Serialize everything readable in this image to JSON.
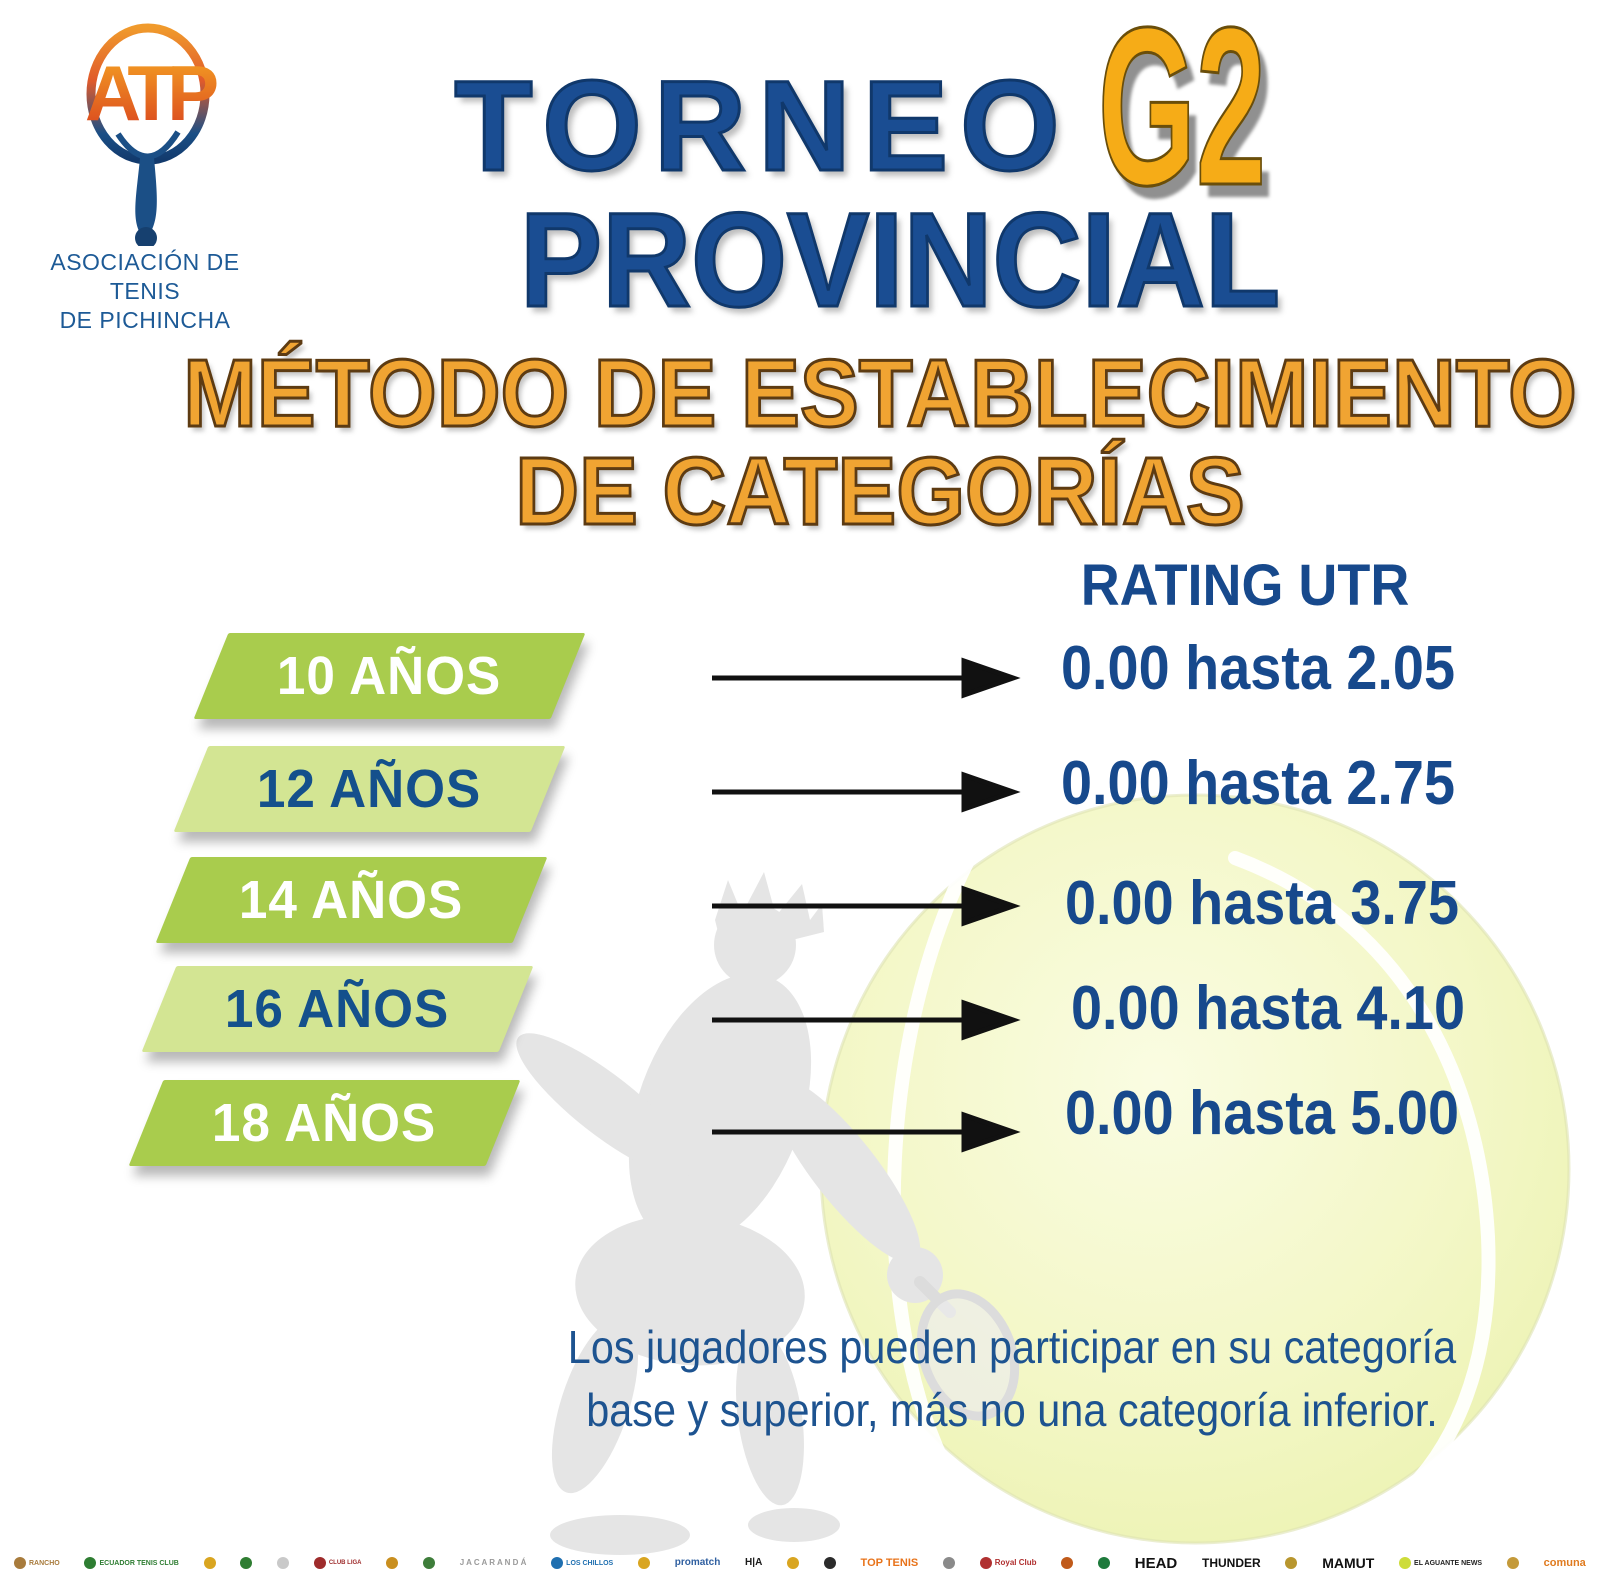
{
  "brand": {
    "org_line1": "ASOCIACIÓN DE TENIS",
    "org_line2": "DE PICHINCHA",
    "logo_letters": "ATP"
  },
  "title": {
    "line1": "TORNEO",
    "badge": "G2",
    "line2": "PROVINCIAL"
  },
  "subtitle": {
    "line1": "MÉTODO DE ESTABLECIMIENTO",
    "line2": "DE CATEGORÍAS"
  },
  "table": {
    "header": "RATING UTR",
    "rows": [
      {
        "category": "10 AÑOS",
        "rating": "0.00 hasta 2.05",
        "style": "dark"
      },
      {
        "category": "12 AÑOS",
        "rating": "0.00 hasta 2.75",
        "style": "light"
      },
      {
        "category": "14 AÑOS",
        "rating": "0.00 hasta 3.75",
        "style": "dark"
      },
      {
        "category": "16 AÑOS",
        "rating": "0.00 hasta 4.10",
        "style": "light"
      },
      {
        "category": "18 AÑOS",
        "rating": "0.00 hasta 5.00",
        "style": "dark"
      }
    ]
  },
  "note": {
    "line1": "Los jugadores pueden participar en su categoría",
    "line2": "base y superior, más no una categoría inferior."
  },
  "colors": {
    "title_blue": "#1a4d92",
    "badge_yellow": "#f6ac17",
    "subtitle_orange": "#f0a432",
    "banner_green_dark": "#a9cc4d",
    "banner_green_light": "#d3e593",
    "text_blue": "#17498c",
    "ball_yellow": "#f3f7c6",
    "silhouette_gray": "#e5e5e5"
  },
  "footer": {
    "sponsors": [
      {
        "t": "icon",
        "label": "RANCHO",
        "color": "#a87b3c",
        "size": 7
      },
      {
        "t": "icon",
        "label": "ECUADOR TENIS CLUB",
        "color": "#2e7d32",
        "size": 7
      },
      {
        "t": "icon",
        "label": "",
        "color": "#d9a520"
      },
      {
        "t": "icon",
        "label": "",
        "color": "#2f7d32"
      },
      {
        "t": "icon",
        "label": "",
        "color": "#c9c9c9"
      },
      {
        "t": "icon",
        "label": "CLUB LIGA",
        "color": "#9e2b2b",
        "size": 6
      },
      {
        "t": "icon",
        "label": "",
        "color": "#c98f1f"
      },
      {
        "t": "icon",
        "label": "",
        "color": "#3e7d3a"
      },
      {
        "t": "text",
        "label": "J A C A R A N D Á",
        "color": "#9a9a9a",
        "size": 8
      },
      {
        "t": "icon",
        "label": "LOS CHILLOS",
        "color": "#1f6fb0",
        "size": 7
      },
      {
        "t": "icon",
        "label": "",
        "color": "#d9a520"
      },
      {
        "t": "text",
        "label": "promatch",
        "color": "#2f5fa0",
        "size": 10
      },
      {
        "t": "text",
        "label": "H|A",
        "color": "#1a1a1a",
        "size": 10
      },
      {
        "t": "icon",
        "label": "",
        "color": "#d9a520"
      },
      {
        "t": "icon",
        "label": "",
        "color": "#2b2b2b"
      },
      {
        "t": "text",
        "label": "TOP TENIS",
        "color": "#e8731a",
        "size": 11
      },
      {
        "t": "icon",
        "label": "",
        "color": "#8a8a8a"
      },
      {
        "t": "icon",
        "label": "Royal Club",
        "color": "#b03030",
        "size": 8
      },
      {
        "t": "icon",
        "label": "",
        "color": "#c05a1a"
      },
      {
        "t": "icon",
        "label": "",
        "color": "#1e7a3c"
      },
      {
        "t": "text",
        "label": "HEAD",
        "color": "#111111",
        "size": 15
      },
      {
        "t": "text",
        "label": "THUNDER",
        "color": "#111111",
        "size": 12
      },
      {
        "t": "icon",
        "label": "",
        "color": "#b8962e"
      },
      {
        "t": "text",
        "label": "MAMUT",
        "color": "#111111",
        "size": 14
      },
      {
        "t": "icon",
        "label": "EL AGUANTE NEWS",
        "color": "#222222",
        "size": 7,
        "dot": "#cddc39"
      },
      {
        "t": "icon",
        "label": "",
        "color": "#c49a3a"
      },
      {
        "t": "text",
        "label": "comuna",
        "color": "#e07b1f",
        "size": 11
      }
    ]
  }
}
